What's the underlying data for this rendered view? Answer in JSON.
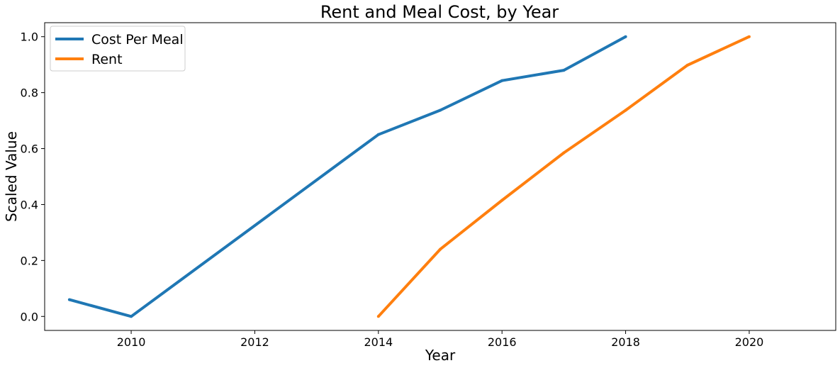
{
  "chart_data": {
    "type": "line",
    "title": "Rent and Meal Cost, by Year",
    "xlabel": "Year",
    "ylabel": "Scaled Value",
    "xlim": [
      2008.6,
      2021.4
    ],
    "ylim": [
      -0.05,
      1.05
    ],
    "xticks": [
      2010,
      2012,
      2014,
      2016,
      2018,
      2020
    ],
    "yticks": [
      0.0,
      0.2,
      0.4,
      0.6,
      0.8,
      1.0
    ],
    "xtick_labels": [
      "2010",
      "2012",
      "2014",
      "2016",
      "2018",
      "2020"
    ],
    "ytick_labels": [
      "0.0",
      "0.2",
      "0.4",
      "0.6",
      "0.8",
      "1.0"
    ],
    "grid": false,
    "legend_position": "top-left",
    "series": [
      {
        "name": "Cost Per Meal",
        "color": "#1f77b4",
        "x": [
          2009,
          2010,
          2014,
          2015,
          2016,
          2017,
          2018
        ],
        "y": [
          0.06,
          0.0,
          0.65,
          0.737,
          0.843,
          0.88,
          1.0
        ]
      },
      {
        "name": "Rent",
        "color": "#ff7f0e",
        "x": [
          2014,
          2015,
          2016,
          2017,
          2018,
          2019,
          2020
        ],
        "y": [
          0.0,
          0.24,
          0.415,
          0.585,
          0.737,
          0.898,
          1.0
        ]
      }
    ]
  }
}
